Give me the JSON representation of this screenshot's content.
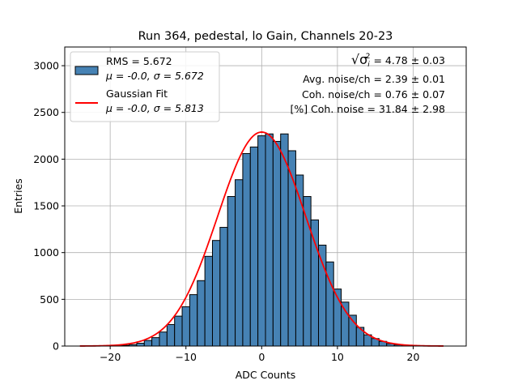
{
  "chart_data": {
    "type": "bar",
    "title": "Run 364, pedestal, lo Gain, Channels 20-23",
    "xlabel": "ADC Counts",
    "ylabel": "Entries",
    "xlim": [
      -26,
      27
    ],
    "ylim": [
      0,
      3200
    ],
    "grid": true,
    "legend_placement": "top-left",
    "x_ticks": [
      -20,
      -10,
      0,
      10,
      20
    ],
    "x_tick_labels": [
      "−20",
      "−10",
      "0",
      "10",
      "20"
    ],
    "y_ticks": [
      0,
      500,
      1000,
      1500,
      2000,
      2500,
      3000
    ],
    "y_tick_labels": [
      "0",
      "500",
      "1000",
      "1500",
      "2000",
      "2500",
      "3000"
    ],
    "histogram": {
      "name": "RMS = 5.672",
      "name_line2": "μ = -0.0, σ = 5.672",
      "bin_width": 1,
      "bin_centers": [
        -21,
        -20,
        -19,
        -18,
        -17,
        -16,
        -15,
        -14,
        -13,
        -12,
        -11,
        -10,
        -9,
        -8,
        -7,
        -6,
        -5,
        -4,
        -3,
        -2,
        -1,
        0,
        1,
        2,
        3,
        4,
        5,
        6,
        7,
        8,
        9,
        10,
        11,
        12,
        13,
        14,
        15,
        16,
        17,
        18,
        19,
        20,
        21
      ],
      "counts": [
        1,
        2,
        4,
        8,
        15,
        30,
        60,
        90,
        150,
        230,
        320,
        420,
        550,
        700,
        960,
        1130,
        1270,
        1600,
        1780,
        2060,
        2130,
        2250,
        2270,
        2190,
        2270,
        2090,
        1830,
        1600,
        1350,
        1080,
        900,
        610,
        470,
        330,
        200,
        120,
        80,
        50,
        25,
        12,
        6,
        3,
        1
      ],
      "color": "#4682b4",
      "edge_color": "#000000"
    },
    "fit": {
      "name": "Gaussian Fit",
      "name_line2": "μ = -0.0, σ = 5.813",
      "amplitude": 2290,
      "mu": -0.0,
      "sigma": 5.813,
      "x_range": [
        -24,
        24
      ],
      "color": "#ff0000"
    },
    "annotations": [
      {
        "label": "√σ",
        "sub": "i",
        "sup": "2",
        "value": " = 4.78 ± 0.03"
      },
      {
        "text": "Avg. noise/ch = 2.39 ± 0.01"
      },
      {
        "text": "Coh. noise/ch = 0.76 ± 0.07"
      },
      {
        "text": "[%] Coh. noise = 31.84 ± 2.98"
      }
    ]
  }
}
